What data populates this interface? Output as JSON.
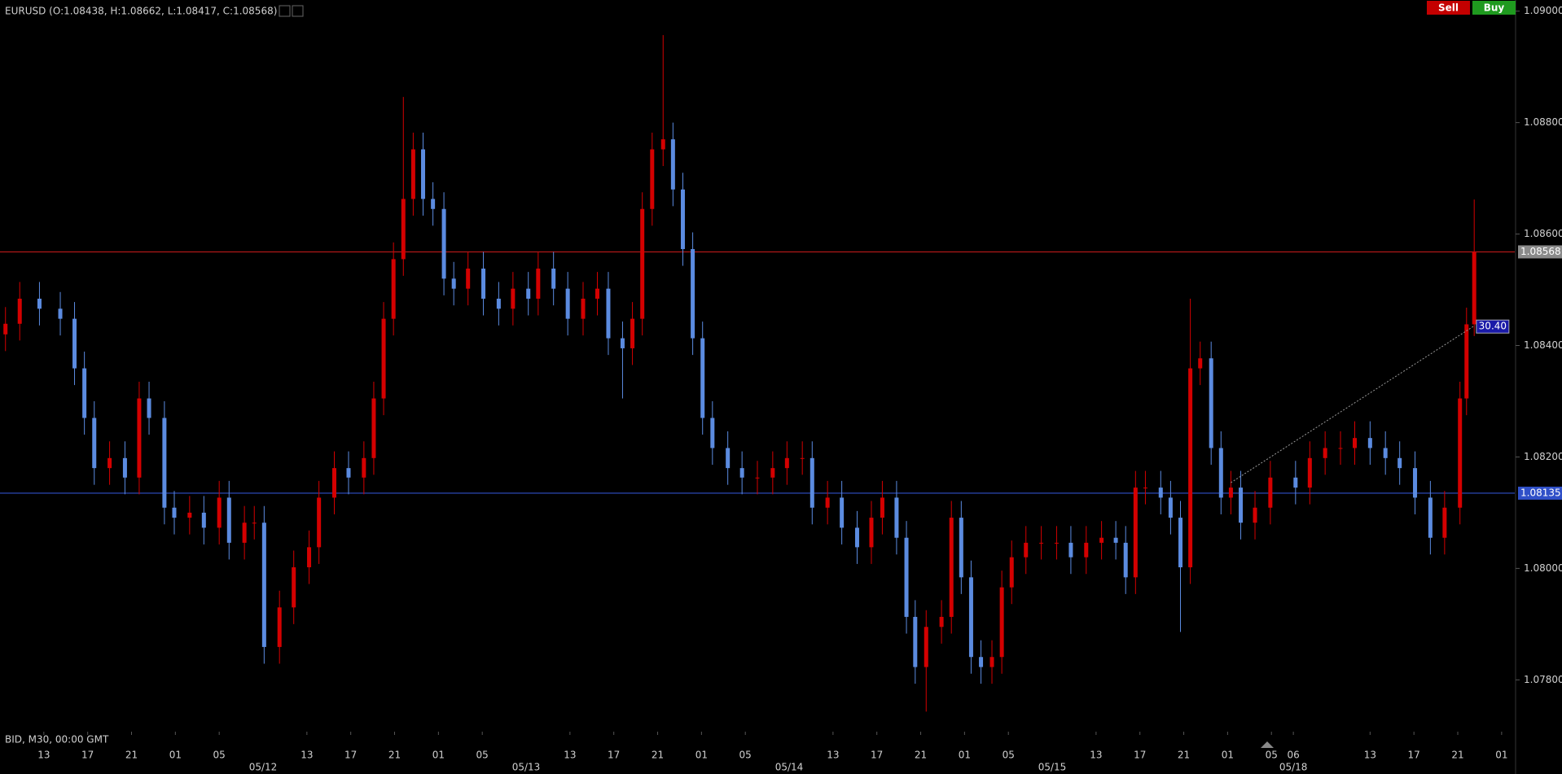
{
  "chart_data": {
    "type": "candlestick",
    "title": "EURUSD (O:1.08438, H:1.08662, L:1.08417, C:1.08568)",
    "subtitle": "BID, M30, 00:00 GMT",
    "buttons": [
      {
        "label": "Sell",
        "color": "#c40000"
      },
      {
        "label": "Buy",
        "color": "#1f9a1f"
      }
    ],
    "up_color": "#d40000",
    "down_color": "#5b8be0",
    "xlim": [
      0,
      138.2
    ],
    "ylim": [
      1.07707,
      1.0902
    ],
    "yticks": [
      {
        "value": 1.078,
        "label": "1.07800"
      },
      {
        "value": 1.08,
        "label": "1.08000"
      },
      {
        "value": 1.082,
        "label": "1.08200"
      },
      {
        "value": 1.084,
        "label": "1.08400"
      },
      {
        "value": 1.086,
        "label": "1.08600"
      },
      {
        "value": 1.088,
        "label": "1.08800"
      },
      {
        "value": 1.09,
        "label": "1.09000"
      }
    ],
    "xticks": [
      {
        "value": 4,
        "label": "13"
      },
      {
        "value": 8,
        "label": "17"
      },
      {
        "value": 12,
        "label": "21"
      },
      {
        "value": 16,
        "label": "01"
      },
      {
        "value": 20,
        "label": "05"
      },
      {
        "value": 28,
        "label": "13"
      },
      {
        "value": 32,
        "label": "17"
      },
      {
        "value": 36,
        "label": "21"
      },
      {
        "value": 40,
        "label": "01"
      },
      {
        "value": 44,
        "label": "05"
      },
      {
        "value": 52,
        "label": "13"
      },
      {
        "value": 56,
        "label": "17"
      },
      {
        "value": 60,
        "label": "21"
      },
      {
        "value": 64,
        "label": "01"
      },
      {
        "value": 68,
        "label": "05"
      },
      {
        "value": 76,
        "label": "13"
      },
      {
        "value": 80,
        "label": "17"
      },
      {
        "value": 84,
        "label": "21"
      },
      {
        "value": 88,
        "label": "01"
      },
      {
        "value": 92,
        "label": "05"
      },
      {
        "value": 100,
        "label": "13"
      },
      {
        "value": 104,
        "label": "17"
      },
      {
        "value": 108,
        "label": "21"
      },
      {
        "value": 112,
        "label": "01"
      },
      {
        "value": 116,
        "label": "05"
      },
      {
        "value": 118,
        "label": "06"
      },
      {
        "value": 125,
        "label": "13"
      },
      {
        "value": 129,
        "label": "17"
      },
      {
        "value": 133,
        "label": "21"
      },
      {
        "value": 137,
        "label": "01"
      }
    ],
    "date_ticks": [
      {
        "value": 24,
        "label": "05/12"
      },
      {
        "value": 48,
        "label": "05/13"
      },
      {
        "value": 72,
        "label": "05/14"
      },
      {
        "value": 96,
        "label": "05/15"
      },
      {
        "value": 118,
        "label": "05/18"
      }
    ],
    "hlines": [
      {
        "value": 1.08568,
        "color": "#b01818",
        "tag_color": "#8a8a8a"
      },
      {
        "value": 1.08135,
        "color": "#3050c8",
        "tag_color": "#3050c8"
      }
    ],
    "trendline": {
      "x": [
        112.3,
        134.4
      ],
      "y": [
        1.08154,
        1.08434
      ],
      "label": "30.40",
      "color": "#999999"
    },
    "x": [
      0.5,
      1.8,
      3.6,
      5.5,
      6.8,
      7.7,
      8.6,
      10,
      11.4,
      12.7,
      13.6,
      15,
      15.9,
      17.3,
      18.6,
      20,
      20.9,
      22.3,
      23.2,
      24.1,
      25.5,
      26.8,
      28.2,
      29.1,
      30.5,
      31.8,
      33.2,
      34.1,
      35,
      35.9,
      36.8,
      37.7,
      38.6,
      39.5,
      40.5,
      41.4,
      42.7,
      44.1,
      45.5,
      46.8,
      48.2,
      49.1,
      50.5,
      51.8,
      53.2,
      54.5,
      55.5,
      56.8,
      57.7,
      58.6,
      59.5,
      60.5,
      61.4,
      62.3,
      63.2,
      64.1,
      65,
      66.4,
      67.7,
      69.1,
      70.5,
      71.8,
      73.2,
      74.1,
      75.5,
      76.8,
      78.2,
      79.5,
      80.5,
      81.8,
      82.7,
      83.5,
      84.5,
      85.9,
      86.8,
      87.7,
      88.6,
      89.5,
      90.5,
      91.4,
      92.3,
      93.6,
      95,
      96.4,
      97.7,
      99.1,
      100.5,
      101.8,
      102.7,
      103.6,
      104.5,
      105.9,
      106.8,
      107.7,
      108.6,
      109.5,
      110.5,
      111.4,
      112.3,
      113.2,
      114.5,
      115.9,
      118.2,
      119.5,
      120.9,
      122.3,
      123.6,
      125,
      126.4,
      127.7,
      129.1,
      130.5,
      131.8,
      133.2,
      133.8,
      134.5
    ],
    "open": [
      1.0842,
      1.08439,
      1.08484,
      1.08466,
      1.08448,
      1.08359,
      1.0827,
      1.0818,
      1.08198,
      1.08163,
      1.08305,
      1.0827,
      1.08109,
      1.08091,
      1.081,
      1.08073,
      1.08127,
      1.08046,
      1.08082,
      1.08082,
      1.07859,
      1.0793,
      1.08002,
      1.08038,
      1.08127,
      1.0818,
      1.08163,
      1.08198,
      1.08305,
      1.08448,
      1.08555,
      1.08663,
      1.08752,
      1.08663,
      1.08645,
      1.0852,
      1.08502,
      1.08538,
      1.08484,
      1.08466,
      1.08502,
      1.08484,
      1.08538,
      1.08502,
      1.08448,
      1.08484,
      1.08502,
      1.08413,
      1.08395,
      1.08448,
      1.08645,
      1.08752,
      1.0877,
      1.0868,
      1.08573,
      1.08413,
      1.0827,
      1.08216,
      1.0818,
      1.08163,
      1.08163,
      1.0818,
      1.08198,
      1.08198,
      1.08109,
      1.08127,
      1.08073,
      1.08038,
      1.08091,
      1.08127,
      1.08055,
      1.07913,
      1.07823,
      1.07895,
      1.07913,
      1.08091,
      1.07984,
      1.07841,
      1.07823,
      1.07841,
      1.07966,
      1.0802,
      1.08046,
      1.08046,
      1.08046,
      1.0802,
      1.08046,
      1.08055,
      1.08046,
      1.07984,
      1.08145,
      1.08145,
      1.08127,
      1.08091,
      1.08002,
      1.08359,
      1.08377,
      1.08216,
      1.08127,
      1.08145,
      1.08082,
      1.08109,
      1.08163,
      1.08145,
      1.08198,
      1.08216,
      1.08216,
      1.08234,
      1.08216,
      1.08198,
      1.0818,
      1.08127,
      1.08055,
      1.08109,
      1.08305,
      1.08438
    ],
    "high": [
      1.08469,
      1.08514,
      1.08514,
      1.08496,
      1.08478,
      1.08389,
      1.083,
      1.08228,
      1.08228,
      1.08335,
      1.08335,
      1.083,
      1.08139,
      1.0813,
      1.0813,
      1.08157,
      1.08157,
      1.08112,
      1.08112,
      1.08112,
      1.0796,
      1.08032,
      1.08068,
      1.08157,
      1.0821,
      1.0821,
      1.08228,
      1.08335,
      1.08478,
      1.08585,
      1.08846,
      1.08782,
      1.08782,
      1.08693,
      1.08675,
      1.0855,
      1.08568,
      1.08568,
      1.08514,
      1.08532,
      1.08532,
      1.08568,
      1.08568,
      1.08532,
      1.08514,
      1.08532,
      1.08532,
      1.08443,
      1.08478,
      1.08675,
      1.08782,
      1.08957,
      1.088,
      1.0871,
      1.08603,
      1.08443,
      1.083,
      1.08246,
      1.0821,
      1.08193,
      1.0821,
      1.08228,
      1.08228,
      1.08228,
      1.08157,
      1.08157,
      1.08103,
      1.08121,
      1.08157,
      1.08157,
      1.08085,
      1.07943,
      1.07925,
      1.07943,
      1.08121,
      1.08121,
      1.08014,
      1.07871,
      1.07871,
      1.07996,
      1.0805,
      1.08076,
      1.08076,
      1.08076,
      1.08076,
      1.08076,
      1.08085,
      1.08085,
      1.08076,
      1.08175,
      1.08175,
      1.08175,
      1.08157,
      1.08121,
      1.08484,
      1.08407,
      1.08407,
      1.08246,
      1.08175,
      1.08175,
      1.08139,
      1.08193,
      1.08193,
      1.08228,
      1.08246,
      1.08246,
      1.08264,
      1.08264,
      1.08246,
      1.08228,
      1.0821,
      1.08157,
      1.08139,
      1.08335,
      1.08468,
      1.08662
    ],
    "low": [
      1.0839,
      1.08409,
      1.08436,
      1.08418,
      1.08329,
      1.0824,
      1.0815,
      1.0815,
      1.08133,
      1.08133,
      1.0824,
      1.08079,
      1.08061,
      1.08061,
      1.08043,
      1.08043,
      1.08016,
      1.08016,
      1.08052,
      1.07829,
      1.07829,
      1.079,
      1.07972,
      1.08008,
      1.08097,
      1.08133,
      1.08133,
      1.08168,
      1.08275,
      1.08418,
      1.08525,
      1.08633,
      1.08633,
      1.08615,
      1.0849,
      1.08472,
      1.08472,
      1.08454,
      1.08436,
      1.08436,
      1.08454,
      1.08454,
      1.08472,
      1.08418,
      1.08418,
      1.08454,
      1.08383,
      1.08305,
      1.08365,
      1.08418,
      1.08615,
      1.08722,
      1.0865,
      1.08543,
      1.08383,
      1.0824,
      1.08186,
      1.0815,
      1.08133,
      1.08133,
      1.08133,
      1.0815,
      1.08168,
      1.08079,
      1.08079,
      1.08043,
      1.08008,
      1.08008,
      1.08061,
      1.08025,
      1.07883,
      1.07793,
      1.07743,
      1.07865,
      1.07883,
      1.07954,
      1.07811,
      1.07793,
      1.07793,
      1.07811,
      1.07936,
      1.0799,
      1.08016,
      1.08016,
      1.0799,
      1.0799,
      1.08016,
      1.08016,
      1.07954,
      1.07954,
      1.08115,
      1.08097,
      1.08061,
      1.07886,
      1.07972,
      1.08329,
      1.08186,
      1.08097,
      1.08097,
      1.08052,
      1.08052,
      1.08079,
      1.08115,
      1.08115,
      1.08168,
      1.08186,
      1.08186,
      1.08186,
      1.08168,
      1.0815,
      1.08097,
      1.08025,
      1.08025,
      1.08079,
      1.08275,
      1.08417
    ],
    "close": [
      1.08439,
      1.08484,
      1.08466,
      1.08448,
      1.08359,
      1.0827,
      1.0818,
      1.08198,
      1.08163,
      1.08305,
      1.0827,
      1.08109,
      1.08091,
      1.081,
      1.08073,
      1.08127,
      1.08046,
      1.08082,
      1.08082,
      1.07859,
      1.0793,
      1.08002,
      1.08038,
      1.08127,
      1.0818,
      1.08163,
      1.08198,
      1.08305,
      1.08448,
      1.08555,
      1.08663,
      1.08752,
      1.08663,
      1.08645,
      1.0852,
      1.08502,
      1.08538,
      1.08484,
      1.08466,
      1.08502,
      1.08484,
      1.08538,
      1.08502,
      1.08448,
      1.08484,
      1.08502,
      1.08413,
      1.08395,
      1.08448,
      1.08645,
      1.08752,
      1.0877,
      1.0868,
      1.08573,
      1.08413,
      1.0827,
      1.08216,
      1.0818,
      1.08163,
      1.08163,
      1.0818,
      1.08198,
      1.08198,
      1.08109,
      1.08127,
      1.08073,
      1.08038,
      1.08091,
      1.08127,
      1.08055,
      1.07913,
      1.07823,
      1.07895,
      1.07913,
      1.08091,
      1.07984,
      1.07841,
      1.07823,
      1.07841,
      1.07966,
      1.0802,
      1.08046,
      1.08046,
      1.08046,
      1.0802,
      1.08046,
      1.08055,
      1.08046,
      1.07984,
      1.08145,
      1.08145,
      1.08127,
      1.08091,
      1.08002,
      1.08359,
      1.08377,
      1.08216,
      1.08127,
      1.08145,
      1.08082,
      1.08109,
      1.08163,
      1.08145,
      1.08198,
      1.08216,
      1.08216,
      1.08234,
      1.08216,
      1.08198,
      1.0818,
      1.08127,
      1.08055,
      1.08109,
      1.08305,
      1.08438,
      1.08568
    ]
  }
}
